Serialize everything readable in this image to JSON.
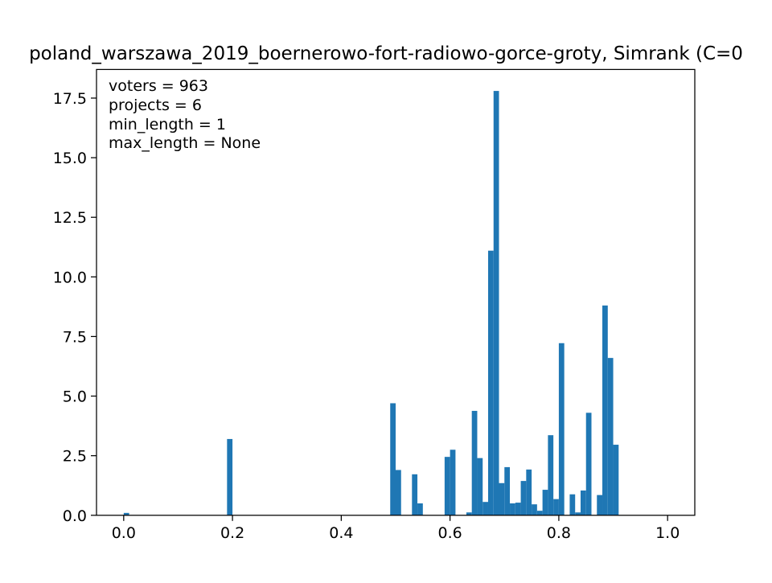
{
  "chart_data": {
    "type": "bar",
    "title": "poland_warszawa_2019_boernerowo-fort-radiowo-gorce-groty, Simrank (C=0",
    "xlabel": "",
    "ylabel": "",
    "xlim": [
      -0.05,
      1.05
    ],
    "ylim": [
      0,
      18.7
    ],
    "bin_width": 0.01,
    "bar_color": "#1f77b4",
    "grid": false,
    "annotations": [
      "voters = 963",
      "projects = 6",
      "min_length = 1",
      "max_length = None"
    ],
    "x_ticks": [
      {
        "value": 0.0,
        "label": "0.0"
      },
      {
        "value": 0.2,
        "label": "0.2"
      },
      {
        "value": 0.4,
        "label": "0.4"
      },
      {
        "value": 0.6,
        "label": "0.6"
      },
      {
        "value": 0.8,
        "label": "0.8"
      },
      {
        "value": 1.0,
        "label": "1.0"
      }
    ],
    "y_ticks": [
      {
        "value": 0.0,
        "label": "0.0"
      },
      {
        "value": 2.5,
        "label": "2.5"
      },
      {
        "value": 5.0,
        "label": "5.0"
      },
      {
        "value": 7.5,
        "label": "7.5"
      },
      {
        "value": 10.0,
        "label": "10.0"
      },
      {
        "value": 12.5,
        "label": "12.5"
      },
      {
        "value": 15.0,
        "label": "15.0"
      },
      {
        "value": 17.5,
        "label": "17.5"
      }
    ],
    "bins": [
      {
        "x": 0.0,
        "y": 0.1
      },
      {
        "x": 0.19,
        "y": 3.2
      },
      {
        "x": 0.49,
        "y": 4.7
      },
      {
        "x": 0.5,
        "y": 1.9
      },
      {
        "x": 0.53,
        "y": 1.72
      },
      {
        "x": 0.54,
        "y": 0.5
      },
      {
        "x": 0.59,
        "y": 2.45
      },
      {
        "x": 0.6,
        "y": 2.75
      },
      {
        "x": 0.63,
        "y": 0.12
      },
      {
        "x": 0.64,
        "y": 4.38
      },
      {
        "x": 0.65,
        "y": 2.4
      },
      {
        "x": 0.66,
        "y": 0.56
      },
      {
        "x": 0.67,
        "y": 11.1
      },
      {
        "x": 0.68,
        "y": 17.8
      },
      {
        "x": 0.69,
        "y": 1.35
      },
      {
        "x": 0.7,
        "y": 2.02
      },
      {
        "x": 0.71,
        "y": 0.5
      },
      {
        "x": 0.72,
        "y": 0.53
      },
      {
        "x": 0.73,
        "y": 1.44
      },
      {
        "x": 0.74,
        "y": 1.92
      },
      {
        "x": 0.75,
        "y": 0.46
      },
      {
        "x": 0.76,
        "y": 0.19
      },
      {
        "x": 0.77,
        "y": 1.07
      },
      {
        "x": 0.78,
        "y": 3.36
      },
      {
        "x": 0.79,
        "y": 0.68
      },
      {
        "x": 0.8,
        "y": 7.22
      },
      {
        "x": 0.82,
        "y": 0.88
      },
      {
        "x": 0.83,
        "y": 0.12
      },
      {
        "x": 0.84,
        "y": 1.04
      },
      {
        "x": 0.85,
        "y": 4.3
      },
      {
        "x": 0.87,
        "y": 0.85
      },
      {
        "x": 0.88,
        "y": 8.8
      },
      {
        "x": 0.89,
        "y": 6.6
      },
      {
        "x": 0.9,
        "y": 2.96
      }
    ]
  }
}
